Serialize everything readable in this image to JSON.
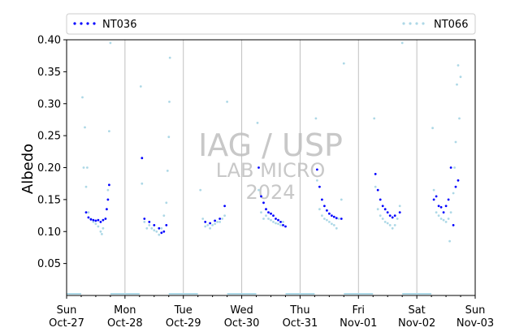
{
  "chart_data": {
    "type": "scatter",
    "title": "",
    "xlabel": "",
    "ylabel": "Albedo",
    "ylim": [
      0,
      0.4
    ],
    "xlim": [
      "2024-10-27",
      "2024-11-03"
    ],
    "yticks": [
      "0.05",
      "0.10",
      "0.15",
      "0.20",
      "0.25",
      "0.30",
      "0.35",
      "0.40"
    ],
    "xticks": [
      {
        "day": "Sun",
        "date": "Oct-27"
      },
      {
        "day": "Mon",
        "date": "Oct-28"
      },
      {
        "day": "Tue",
        "date": "Oct-29"
      },
      {
        "day": "Wed",
        "date": "Oct-30"
      },
      {
        "day": "Thu",
        "date": "Oct-31"
      },
      {
        "day": "Fri",
        "date": "Nov-01"
      },
      {
        "day": "Sat",
        "date": "Nov-02"
      },
      {
        "day": "Sun",
        "date": "Nov-03"
      }
    ],
    "legend_position": "top",
    "grid": "vertical lines at day boundaries",
    "watermark": [
      "IAG / USP",
      "LAB MICRO",
      "2024"
    ],
    "series": [
      {
        "name": "NT036",
        "color": "#0000ff",
        "points": [
          [
            "2024-10-27T08:00",
            0.13
          ],
          [
            "2024-10-27T09:00",
            0.122
          ],
          [
            "2024-10-27T10:00",
            0.119
          ],
          [
            "2024-10-27T11:00",
            0.118
          ],
          [
            "2024-10-27T12:00",
            0.117
          ],
          [
            "2024-10-27T13:00",
            0.118
          ],
          [
            "2024-10-27T14:00",
            0.115
          ],
          [
            "2024-10-27T15:00",
            0.118
          ],
          [
            "2024-10-27T16:00",
            0.12
          ],
          [
            "2024-10-27T16:30",
            0.135
          ],
          [
            "2024-10-27T17:00",
            0.15
          ],
          [
            "2024-10-27T17:30",
            0.173
          ],
          [
            "2024-10-28T07:00",
            0.215
          ],
          [
            "2024-10-28T08:00",
            0.12
          ],
          [
            "2024-10-28T10:00",
            0.115
          ],
          [
            "2024-10-28T12:00",
            0.11
          ],
          [
            "2024-10-28T14:00",
            0.105
          ],
          [
            "2024-10-28T15:00",
            0.098
          ],
          [
            "2024-10-28T16:00",
            0.1
          ],
          [
            "2024-10-28T17:00",
            0.11
          ],
          [
            "2024-10-29T09:00",
            0.115
          ],
          [
            "2024-10-29T11:00",
            0.113
          ],
          [
            "2024-10-29T13:00",
            0.117
          ],
          [
            "2024-10-29T15:00",
            0.12
          ],
          [
            "2024-10-29T17:00",
            0.14
          ],
          [
            "2024-10-30T07:00",
            0.2
          ],
          [
            "2024-10-30T08:00",
            0.155
          ],
          [
            "2024-10-30T09:00",
            0.145
          ],
          [
            "2024-10-30T10:00",
            0.135
          ],
          [
            "2024-10-30T11:00",
            0.13
          ],
          [
            "2024-10-30T12:00",
            0.128
          ],
          [
            "2024-10-30T13:00",
            0.125
          ],
          [
            "2024-10-30T14:00",
            0.12
          ],
          [
            "2024-10-30T15:00",
            0.118
          ],
          [
            "2024-10-30T16:00",
            0.115
          ],
          [
            "2024-10-30T17:00",
            0.11
          ],
          [
            "2024-10-30T18:00",
            0.108
          ],
          [
            "2024-10-31T07:00",
            0.197
          ],
          [
            "2024-10-31T08:00",
            0.17
          ],
          [
            "2024-10-31T09:00",
            0.15
          ],
          [
            "2024-10-31T10:00",
            0.14
          ],
          [
            "2024-10-31T11:00",
            0.133
          ],
          [
            "2024-10-31T12:00",
            0.128
          ],
          [
            "2024-10-31T13:00",
            0.125
          ],
          [
            "2024-10-31T14:00",
            0.123
          ],
          [
            "2024-10-31T15:00",
            0.121
          ],
          [
            "2024-10-31T17:00",
            0.12
          ],
          [
            "2024-11-01T07:00",
            0.19
          ],
          [
            "2024-11-01T08:00",
            0.165
          ],
          [
            "2024-11-01T09:00",
            0.15
          ],
          [
            "2024-11-01T10:00",
            0.14
          ],
          [
            "2024-11-01T11:00",
            0.135
          ],
          [
            "2024-11-01T12:00",
            0.13
          ],
          [
            "2024-11-01T13:00",
            0.125
          ],
          [
            "2024-11-01T14:00",
            0.122
          ],
          [
            "2024-11-01T15:00",
            0.125
          ],
          [
            "2024-11-01T17:00",
            0.13
          ],
          [
            "2024-11-02T07:00",
            0.15
          ],
          [
            "2024-11-02T08:00",
            0.155
          ],
          [
            "2024-11-02T09:00",
            0.14
          ],
          [
            "2024-11-02T10:00",
            0.138
          ],
          [
            "2024-11-02T11:00",
            0.13
          ],
          [
            "2024-11-02T12:00",
            0.14
          ],
          [
            "2024-11-02T13:00",
            0.15
          ],
          [
            "2024-11-02T14:00",
            0.2
          ],
          [
            "2024-11-02T15:00",
            0.11
          ],
          [
            "2024-11-02T16:00",
            0.17
          ],
          [
            "2024-11-02T17:00",
            0.18
          ]
        ]
      },
      {
        "name": "NT066",
        "color": "#add8e6",
        "points": [
          [
            "2024-10-27T06:30",
            0.31
          ],
          [
            "2024-10-27T07:00",
            0.2
          ],
          [
            "2024-10-27T07:30",
            0.263
          ],
          [
            "2024-10-27T08:00",
            0.17
          ],
          [
            "2024-10-27T08:30",
            0.2
          ],
          [
            "2024-10-27T09:00",
            0.13
          ],
          [
            "2024-10-27T10:00",
            0.12
          ],
          [
            "2024-10-27T11:00",
            0.115
          ],
          [
            "2024-10-27T12:00",
            0.112
          ],
          [
            "2024-10-27T13:00",
            0.108
          ],
          [
            "2024-10-27T14:00",
            0.1
          ],
          [
            "2024-10-27T14:30",
            0.096
          ],
          [
            "2024-10-27T15:00",
            0.105
          ],
          [
            "2024-10-27T16:00",
            0.12
          ],
          [
            "2024-10-27T17:00",
            0.165
          ],
          [
            "2024-10-27T17:30",
            0.257
          ],
          [
            "2024-10-27T18:00",
            0.395
          ],
          [
            "2024-10-28T06:30",
            0.327
          ],
          [
            "2024-10-28T07:00",
            0.175
          ],
          [
            "2024-10-28T08:00",
            0.115
          ],
          [
            "2024-10-28T09:00",
            0.105
          ],
          [
            "2024-10-28T10:00",
            0.11
          ],
          [
            "2024-10-28T11:00",
            0.105
          ],
          [
            "2024-10-28T12:00",
            0.102
          ],
          [
            "2024-10-28T13:00",
            0.1
          ],
          [
            "2024-10-28T14:00",
            0.095
          ],
          [
            "2024-10-28T15:00",
            0.105
          ],
          [
            "2024-10-28T16:00",
            0.125
          ],
          [
            "2024-10-28T17:00",
            0.145
          ],
          [
            "2024-10-28T17:30",
            0.195
          ],
          [
            "2024-10-28T18:00",
            0.248
          ],
          [
            "2024-10-28T18:15",
            0.303
          ],
          [
            "2024-10-28T18:30",
            0.372
          ],
          [
            "2024-10-29T07:00",
            0.165
          ],
          [
            "2024-10-29T08:00",
            0.12
          ],
          [
            "2024-10-29T09:00",
            0.108
          ],
          [
            "2024-10-29T10:00",
            0.11
          ],
          [
            "2024-10-29T11:00",
            0.105
          ],
          [
            "2024-10-29T12:00",
            0.11
          ],
          [
            "2024-10-29T13:00",
            0.112
          ],
          [
            "2024-10-29T14:00",
            0.115
          ],
          [
            "2024-10-29T15:00",
            0.115
          ],
          [
            "2024-10-29T16:00",
            0.12
          ],
          [
            "2024-10-29T17:00",
            0.125
          ],
          [
            "2024-10-29T18:00",
            0.303
          ],
          [
            "2024-10-30T06:30",
            0.27
          ],
          [
            "2024-10-30T07:00",
            0.165
          ],
          [
            "2024-10-30T08:00",
            0.13
          ],
          [
            "2024-10-30T09:00",
            0.12
          ],
          [
            "2024-10-30T10:00",
            0.125
          ],
          [
            "2024-10-30T11:00",
            0.12
          ],
          [
            "2024-10-30T12:00",
            0.118
          ],
          [
            "2024-10-30T13:00",
            0.115
          ],
          [
            "2024-10-30T14:00",
            0.113
          ],
          [
            "2024-10-30T15:00",
            0.112
          ],
          [
            "2024-10-30T16:00",
            0.11
          ],
          [
            "2024-10-30T17:00",
            0.115
          ],
          [
            "2024-10-31T06:30",
            0.277
          ],
          [
            "2024-10-31T07:00",
            0.18
          ],
          [
            "2024-10-31T08:00",
            0.135
          ],
          [
            "2024-10-31T09:00",
            0.125
          ],
          [
            "2024-10-31T10:00",
            0.12
          ],
          [
            "2024-10-31T11:00",
            0.118
          ],
          [
            "2024-10-31T12:00",
            0.115
          ],
          [
            "2024-10-31T13:00",
            0.112
          ],
          [
            "2024-10-31T14:00",
            0.11
          ],
          [
            "2024-10-31T15:00",
            0.105
          ],
          [
            "2024-10-31T16:00",
            0.12
          ],
          [
            "2024-10-31T17:00",
            0.15
          ],
          [
            "2024-10-31T18:00",
            0.363
          ],
          [
            "2024-11-01T06:30",
            0.277
          ],
          [
            "2024-11-01T07:00",
            0.17
          ],
          [
            "2024-11-01T08:00",
            0.135
          ],
          [
            "2024-11-01T09:00",
            0.125
          ],
          [
            "2024-11-01T10:00",
            0.12
          ],
          [
            "2024-11-01T11:00",
            0.115
          ],
          [
            "2024-11-01T12:00",
            0.113
          ],
          [
            "2024-11-01T13:00",
            0.11
          ],
          [
            "2024-11-01T14:00",
            0.105
          ],
          [
            "2024-11-01T15:00",
            0.11
          ],
          [
            "2024-11-01T16:00",
            0.12
          ],
          [
            "2024-11-01T17:00",
            0.14
          ],
          [
            "2024-11-01T18:00",
            0.395
          ],
          [
            "2024-11-02T06:30",
            0.262
          ],
          [
            "2024-11-02T07:00",
            0.165
          ],
          [
            "2024-11-02T08:00",
            0.13
          ],
          [
            "2024-11-02T09:00",
            0.125
          ],
          [
            "2024-11-02T10:00",
            0.12
          ],
          [
            "2024-11-02T11:00",
            0.118
          ],
          [
            "2024-11-02T12:00",
            0.115
          ],
          [
            "2024-11-02T13:00",
            0.12
          ],
          [
            "2024-11-02T13:30",
            0.085
          ],
          [
            "2024-11-02T14:00",
            0.13
          ],
          [
            "2024-11-02T15:00",
            0.16
          ],
          [
            "2024-11-02T15:30",
            0.2
          ],
          [
            "2024-11-02T16:00",
            0.24
          ],
          [
            "2024-11-02T16:30",
            0.33
          ],
          [
            "2024-11-02T17:00",
            0.36
          ],
          [
            "2024-11-02T17:30",
            0.277
          ],
          [
            "2024-11-02T18:00",
            0.342
          ]
        ]
      }
    ]
  }
}
